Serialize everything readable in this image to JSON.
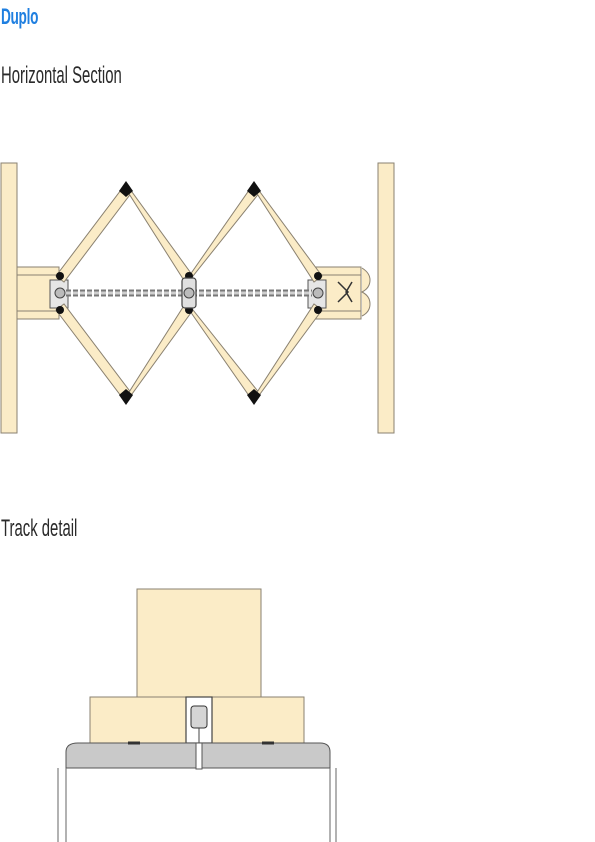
{
  "page": {
    "title": "Duplo"
  },
  "sections": {
    "horizontal": {
      "label": "Horizontal Section"
    },
    "track": {
      "label": "Track detail"
    }
  },
  "colors": {
    "title": "#1f7fe0",
    "timber": "#fbecc7",
    "outline": "#8a8170",
    "metal": "#c9c9c9",
    "dark": "#111111"
  }
}
